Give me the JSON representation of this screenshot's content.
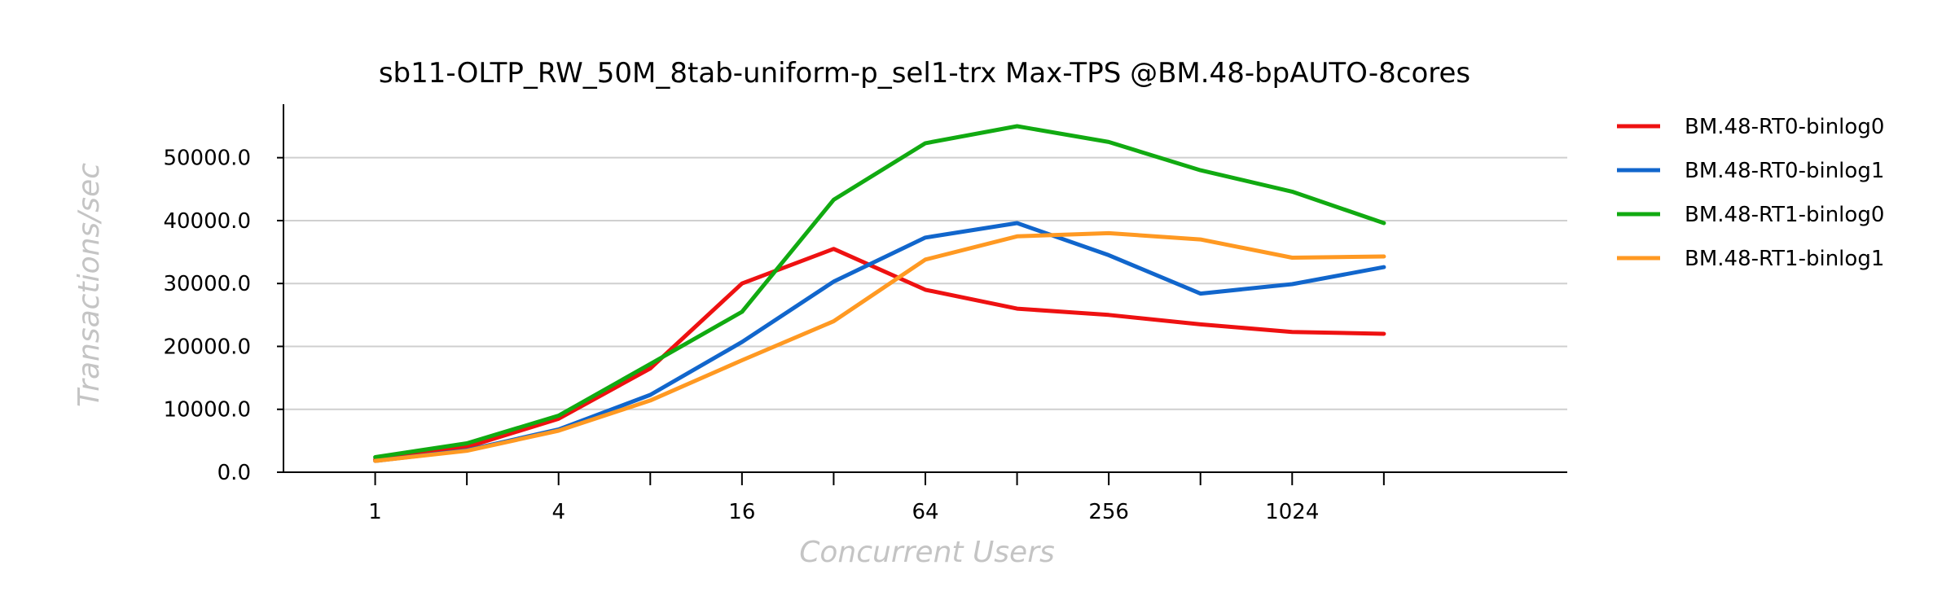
{
  "chart_data": {
    "type": "line",
    "title": "sb11-OLTP_RW_50M_8tab-uniform-p_sel1-trx Max-TPS @BM.48-bpAUTO-8cores",
    "xlabel": "Concurrent Users",
    "ylabel": "Transactions/sec",
    "x": [
      1,
      2,
      4,
      8,
      16,
      32,
      64,
      128,
      256,
      512,
      1024,
      2048
    ],
    "x_scale": "log2",
    "x_ticks": [
      1,
      4,
      16,
      64,
      256,
      1024
    ],
    "x_tick_labels": [
      "1",
      "4",
      "16",
      "64",
      "256",
      "1024"
    ],
    "xlim": [
      0.5,
      8192
    ],
    "ylim": [
      0,
      58500
    ],
    "y_ticks": [
      0,
      10000,
      20000,
      30000,
      40000,
      50000
    ],
    "y_tick_labels": [
      "0.0",
      "10000.0",
      "20000.0",
      "30000.0",
      "40000.0",
      "50000.0"
    ],
    "grid": "horizontal",
    "legend_position": "right",
    "series": [
      {
        "name": "BM.48-RT0-binlog0",
        "color": "#ee1111",
        "values": [
          2000,
          4000,
          8500,
          16500,
          30000,
          35500,
          29000,
          26000,
          25000,
          23500,
          22300,
          22000
        ]
      },
      {
        "name": "BM.48-RT0-binlog1",
        "color": "#1166cc",
        "values": [
          1800,
          3500,
          6800,
          12300,
          20700,
          30300,
          37300,
          39600,
          34500,
          28400,
          29900,
          32600
        ]
      },
      {
        "name": "BM.48-RT1-binlog0",
        "color": "#11aa11",
        "values": [
          2400,
          4600,
          9000,
          17200,
          25500,
          43300,
          52300,
          55000,
          52500,
          48000,
          44600,
          39600
        ]
      },
      {
        "name": "BM.48-RT1-binlog1",
        "color": "#ff9922",
        "values": [
          1800,
          3400,
          6600,
          11400,
          17800,
          24000,
          33800,
          37500,
          38000,
          37000,
          34100,
          34300
        ]
      }
    ]
  }
}
